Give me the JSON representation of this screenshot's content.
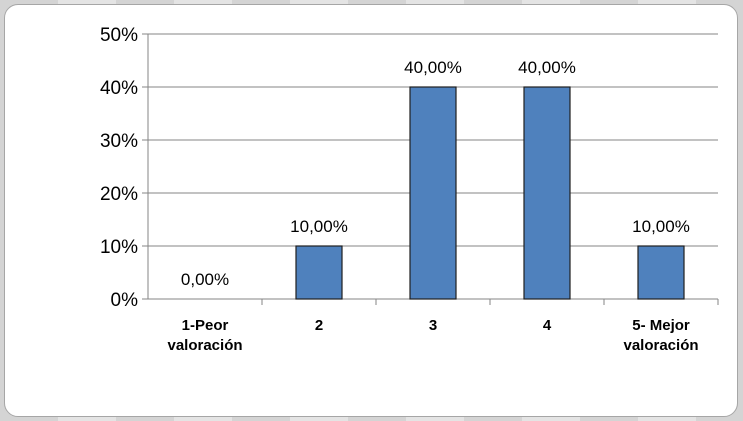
{
  "chart_data": {
    "type": "bar",
    "categories": [
      [
        "1-Peor",
        "valoración"
      ],
      [
        "2"
      ],
      [
        "3"
      ],
      [
        "4"
      ],
      [
        "5- Mejor",
        "valoración"
      ]
    ],
    "values": [
      0.0,
      10.0,
      40.0,
      40.0,
      10.0
    ],
    "data_labels": [
      "0,00%",
      "10,00%",
      "40,00%",
      "40,00%",
      "10,00%"
    ],
    "y_ticks": [
      "0%",
      "10%",
      "20%",
      "30%",
      "40%",
      "50%"
    ],
    "ylim": [
      0,
      50
    ],
    "grid": true,
    "title": "",
    "xlabel": "",
    "ylabel": ""
  },
  "colors": {
    "bar_fill": "#4f81bd",
    "bar_stroke": "#1f1f1f",
    "grid": "#868686"
  }
}
